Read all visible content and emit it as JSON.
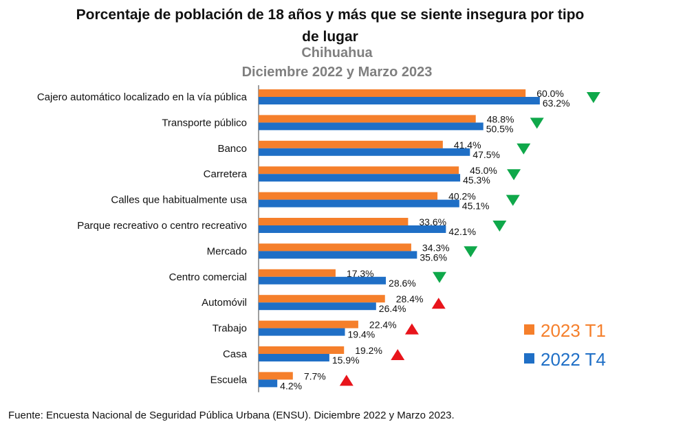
{
  "header": {
    "title": "Porcentaje de población de 18 años y más que se siente insegura por tipo de lugar",
    "subtitle_region": "Chihuahua",
    "subtitle_period": "Diciembre 2022 y Marzo 2023"
  },
  "footer": {
    "source": "Fuente: Encuesta Nacional de Seguridad Pública Urbana (ENSU). Diciembre 2022 y Marzo 2023."
  },
  "colors": {
    "series_2023_T1": "#f57f2b",
    "series_2022_T4": "#1f6fc6",
    "decrease": "#0fa84a",
    "increase": "#e8141b"
  },
  "chart_data": {
    "type": "bar",
    "orientation": "horizontal",
    "title": "Porcentaje de población de 18 años y más que se siente insegura por tipo de lugar",
    "subtitle": "Chihuahua — Diciembre 2022 y Marzo 2023",
    "xlabel": "",
    "ylabel": "",
    "xlim": [
      0,
      75
    ],
    "grid": false,
    "legend_position": "bottom-right",
    "categories": [
      "Cajero automático localizado en la vía pública",
      "Transporte público",
      "Banco",
      "Carretera",
      "Calles que habitualmente usa",
      "Parque recreativo o centro recreativo",
      "Mercado",
      "Centro comercial",
      "Automóvil",
      "Trabajo",
      "Casa",
      "Escuela"
    ],
    "series": [
      {
        "name": "2023 T1",
        "values": [
          60.0,
          48.8,
          41.4,
          45.0,
          40.2,
          33.6,
          34.3,
          17.3,
          28.4,
          22.4,
          19.2,
          7.7
        ],
        "labels": [
          "60.0%",
          "48.8%",
          "41.4%",
          "45.0%",
          "40.2%",
          "33.6%",
          "34.3%",
          "17.3%",
          "28.4%",
          "22.4%",
          "19.2%",
          "7.7%"
        ]
      },
      {
        "name": "2022 T4",
        "values": [
          63.2,
          50.5,
          47.5,
          45.3,
          45.1,
          42.1,
          35.6,
          28.6,
          26.4,
          19.4,
          15.9,
          4.2
        ],
        "labels": [
          "63.2%",
          "50.5%",
          "47.5%",
          "45.3%",
          "45.1%",
          "42.1%",
          "35.6%",
          "28.6%",
          "26.4%",
          "19.4%",
          "15.9%",
          "4.2%"
        ]
      }
    ],
    "trend_markers": [
      "down",
      "down",
      "down",
      "down",
      "down",
      "down",
      "down",
      "down",
      "up",
      "up",
      "up",
      "up"
    ]
  }
}
